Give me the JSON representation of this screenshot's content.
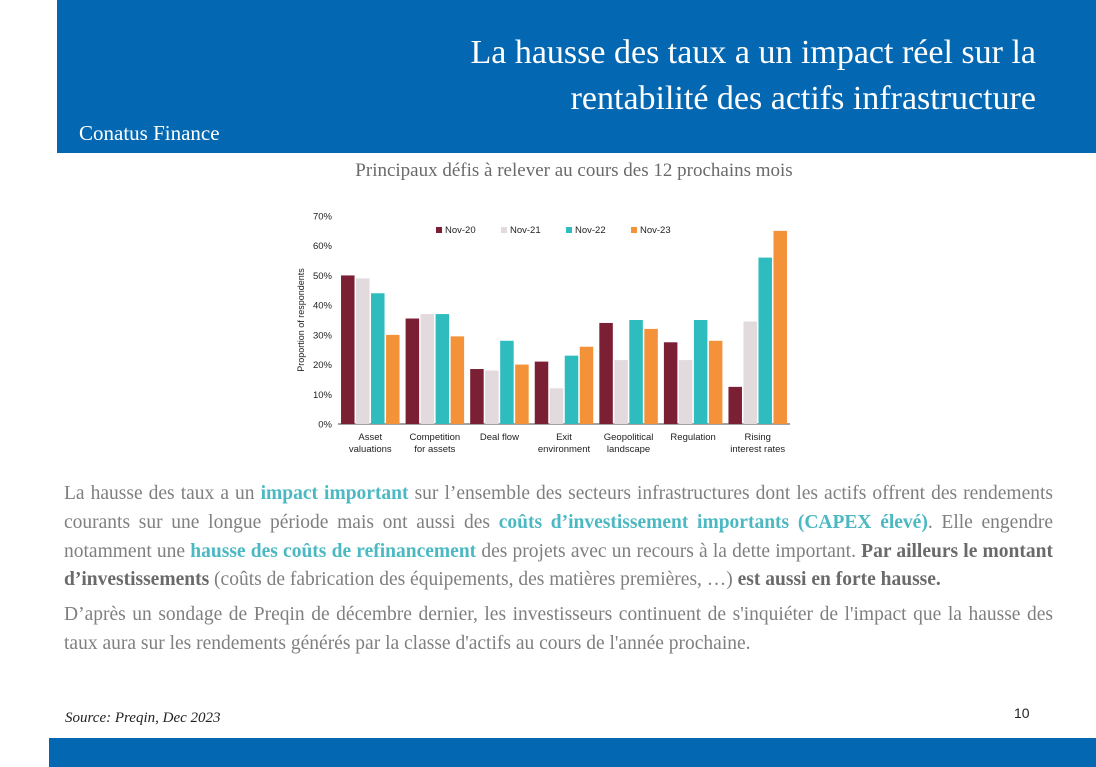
{
  "header": {
    "title_line1": "La hausse des taux a un impact réel sur la",
    "title_line2": "rentabilité des actifs infrastructure",
    "brand": "Conatus Finance"
  },
  "chart_caption": "Principaux défis à relever au cours des 12 prochains mois",
  "chart_data": {
    "type": "bar",
    "categories": [
      [
        "Asset",
        "valuations"
      ],
      [
        "Competition",
        "for assets"
      ],
      [
        "Deal flow"
      ],
      [
        "Exit",
        "environment"
      ],
      [
        "Geopolitical",
        "landscape"
      ],
      [
        "Regulation"
      ],
      [
        "Rising",
        "interest rates"
      ]
    ],
    "series": [
      {
        "name": "Nov-20",
        "color": "#7b1f35",
        "values": [
          50,
          35.5,
          18.5,
          21,
          34,
          27.5,
          12.5
        ]
      },
      {
        "name": "Nov-21",
        "color": "#e2dadd",
        "values": [
          49,
          37,
          18,
          12,
          21.5,
          21.5,
          34.5
        ]
      },
      {
        "name": "Nov-22",
        "color": "#2ebcbf",
        "values": [
          44,
          37,
          28,
          23,
          35,
          35,
          56
        ]
      },
      {
        "name": "Nov-23",
        "color": "#f4923a",
        "values": [
          30,
          29.5,
          20,
          26,
          32,
          28,
          65
        ]
      }
    ],
    "ylabel": "Proportion of respondents",
    "ylim": [
      0,
      70
    ],
    "yticks": [
      "0%",
      "10%",
      "20%",
      "30%",
      "40%",
      "50%",
      "60%",
      "70%"
    ],
    "legend_position": "top-center",
    "grid": false
  },
  "body": {
    "p1": [
      {
        "t": "La hausse des taux a un ",
        "s": ""
      },
      {
        "t": "impact important",
        "s": "hl"
      },
      {
        "t": " sur l’ensemble des secteurs infrastructures dont les actifs offrent des rendements courants sur une longue période mais ont aussi des ",
        "s": ""
      },
      {
        "t": "coûts d’investissement importants (CAPEX élevé)",
        "s": "hl"
      },
      {
        "t": ". Elle engendre notamment une ",
        "s": ""
      },
      {
        "t": "hausse des coûts de refinancement",
        "s": "hl"
      },
      {
        "t": " des projets avec un recours à la dette important. ",
        "s": ""
      },
      {
        "t": "Par ailleurs le montant d’investissements",
        "s": "bold-dark"
      },
      {
        "t": " (coûts de fabrication des équipements, des matières premières, …) ",
        "s": ""
      },
      {
        "t": "est aussi en forte hausse.",
        "s": "bold-dark"
      }
    ],
    "p2": "D’après un sondage de Preqin de décembre dernier, les investisseurs continuent de s'inquiéter de l'impact que la hausse des taux aura sur les rendements générés par la classe d'actifs au cours de l'année prochaine."
  },
  "footer": {
    "source": "Source: Preqin, Dec 2023",
    "page_number": "10"
  }
}
